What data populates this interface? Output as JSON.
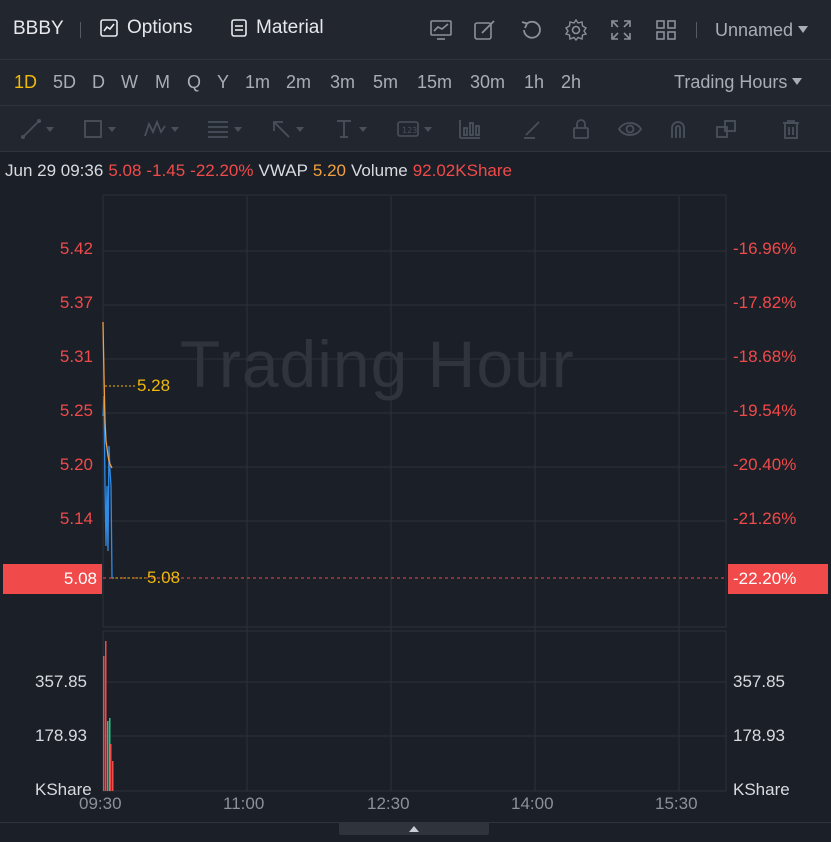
{
  "header": {
    "ticker": "BBBY",
    "options_label": "Options",
    "material_label": "Material",
    "layout_name": "Unnamed",
    "tools": [
      "chart-type-icon",
      "draw-icon",
      "refresh-icon",
      "settings-icon",
      "fullscreen-icon",
      "layout-grid-icon"
    ]
  },
  "timeframes": {
    "items": [
      "1D",
      "5D",
      "D",
      "W",
      "M",
      "Q",
      "Y",
      "1m",
      "2m",
      "3m",
      "5m",
      "15m",
      "30m",
      "1h",
      "2h"
    ],
    "active": "1D",
    "session_label": "Trading Hours"
  },
  "drawing_tools": [
    "trend-line-icon",
    "rectangle-icon",
    "pattern-icon",
    "fibonacci-icon",
    "arrow-icon",
    "measure-icon",
    "text-icon",
    "indicator-icon",
    "brush-icon",
    "lock-icon",
    "visibility-icon",
    "magnet-icon",
    "copy-icon",
    "trash-icon"
  ],
  "info": {
    "datetime": "Jun 29 09:36",
    "price": "5.08",
    "change": "-1.45",
    "change_pct": "-22.20%",
    "vwap_label": "VWAP",
    "vwap_value": "5.20",
    "volume_label": "Volume",
    "volume_value": "92.02KShare"
  },
  "chart": {
    "watermark": "Trading Hour",
    "price_labels": [
      "5.42",
      "5.37",
      "5.31",
      "5.25",
      "5.20",
      "5.14"
    ],
    "pct_labels": [
      "-16.96%",
      "-17.82%",
      "-18.68%",
      "-19.54%",
      "-20.40%",
      "-21.26%"
    ],
    "current_price": "5.08",
    "current_pct": "-22.20%",
    "annotation_high": "5.28",
    "annotation_last": "5.08",
    "volume_labels": [
      "357.85",
      "178.93"
    ],
    "volume_unit": "KShare",
    "time_labels": [
      "09:30",
      "11:00",
      "12:30",
      "14:00",
      "15:30"
    ]
  },
  "colors": {
    "up": "#2ebd85",
    "down": "#f04a4a",
    "accent": "#f0b90b",
    "price_line": "#2f8be6",
    "vwap_line": "#f0a040"
  }
}
